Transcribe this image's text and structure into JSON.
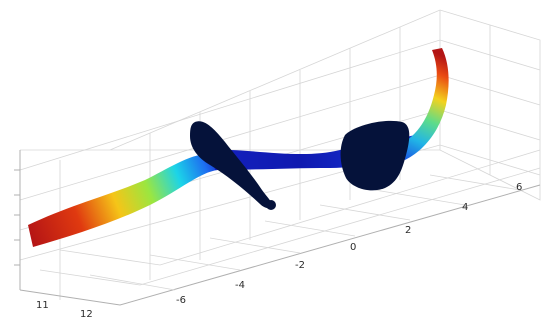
{
  "chart_data": {
    "type": "surface",
    "title": "",
    "xlabel": "",
    "ylabel": "",
    "zlabel": "",
    "grid": true,
    "colormap": "jet",
    "x_ticks": [
      "-6",
      "-4",
      "-2",
      "0",
      "2",
      "4",
      "6"
    ],
    "y_ticks": [
      "11",
      "12"
    ],
    "z_ticks": [],
    "ribbon_surface": {
      "description_values": "colored ribbon: red at both ends, blue in the middle twisted section",
      "t": [
        -7,
        -6,
        -5,
        -4,
        -3,
        -2,
        -1,
        0,
        1,
        2,
        3,
        4,
        5,
        6,
        7
      ],
      "color_value": [
        1.0,
        0.9,
        0.75,
        0.55,
        0.35,
        0.1,
        0.0,
        0.0,
        0.0,
        0.05,
        0.15,
        0.4,
        0.7,
        0.9,
        1.0
      ]
    },
    "solid_objects": [
      {
        "name": "",
        "color": "#05123a"
      },
      {
        "name": "",
        "color": "#05123a"
      }
    ]
  }
}
